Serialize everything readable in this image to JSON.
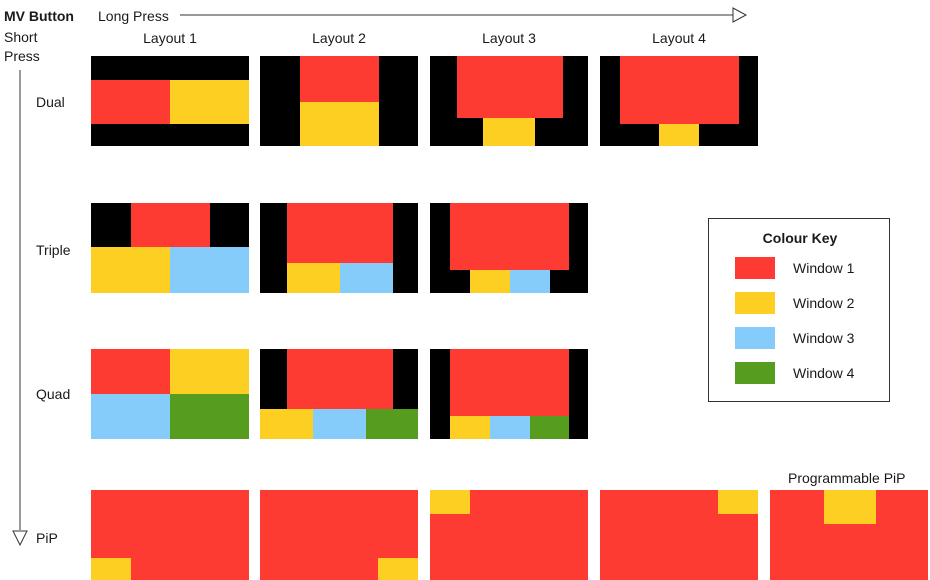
{
  "header": {
    "button_label": "MV Button",
    "long_press": "Long Press",
    "short_press_line1": "Short",
    "short_press_line2": "Press"
  },
  "columns": [
    "Layout 1",
    "Layout 2",
    "Layout 3",
    "Layout 4"
  ],
  "rows": [
    "Dual",
    "Triple",
    "Quad",
    "PiP"
  ],
  "pip_note": "Programmable PiP",
  "colour_key": {
    "title": "Colour Key",
    "items": [
      {
        "label": "Window 1",
        "color": "#fd3b33"
      },
      {
        "label": "Window 2",
        "color": "#fdcf22"
      },
      {
        "label": "Window 3",
        "color": "#86ccfb"
      },
      {
        "label": "Window 4",
        "color": "#559c1f"
      }
    ]
  },
  "colors": {
    "window_1": "#fd3b33",
    "window_2": "#fdcf22",
    "window_3": "#86ccfb",
    "window_4": "#559c1f",
    "background": "#000000"
  }
}
